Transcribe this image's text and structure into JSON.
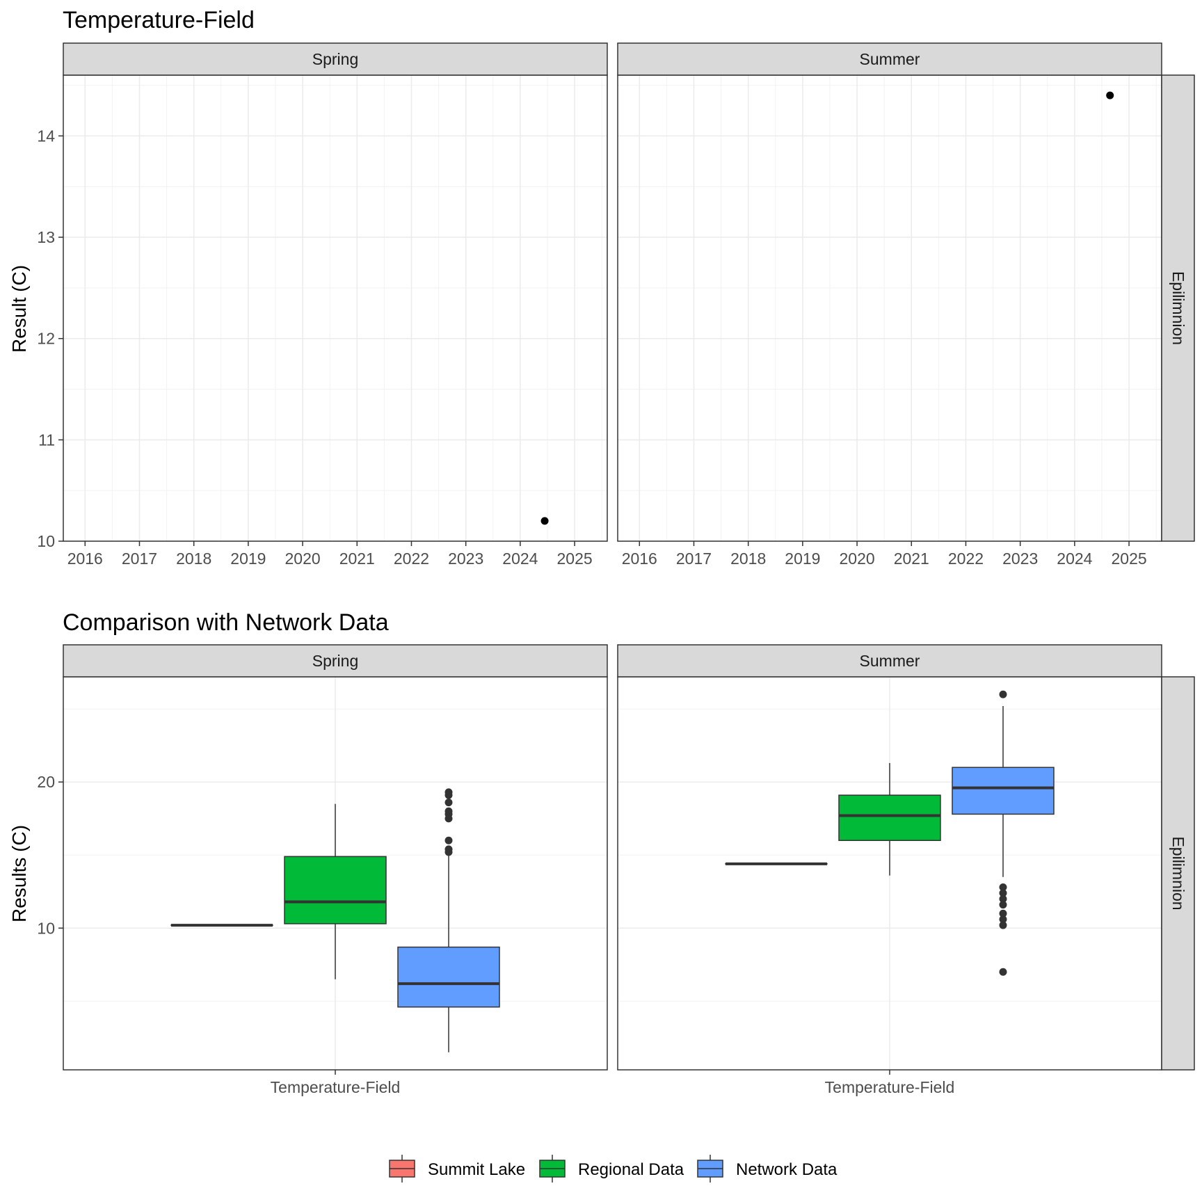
{
  "chart_data": [
    {
      "type": "scatter",
      "title": "Temperature-Field",
      "ylabel": "Result (C)",
      "xlabel": "",
      "x_ticks": [
        "2016",
        "2017",
        "2018",
        "2019",
        "2020",
        "2021",
        "2022",
        "2023",
        "2024",
        "2025"
      ],
      "xlim": [
        2015.6,
        2025.6
      ],
      "ylim": [
        10.0,
        14.6
      ],
      "y_ticks": [
        10,
        11,
        12,
        13,
        14
      ],
      "grid": true,
      "facet_rows": [
        "Epilimnion"
      ],
      "panels": [
        {
          "facet": "Spring",
          "points": [
            {
              "x": 2024.45,
              "y": 10.2
            }
          ]
        },
        {
          "facet": "Summer",
          "points": [
            {
              "x": 2024.65,
              "y": 14.4
            }
          ]
        }
      ]
    },
    {
      "type": "box",
      "title": "Comparison with Network Data",
      "ylabel": "Results (C)",
      "xlabel": "",
      "categories": [
        "Temperature-Field"
      ],
      "ylim": [
        0.3,
        27.2
      ],
      "y_ticks": [
        10,
        20
      ],
      "grid": true,
      "facet_rows": [
        "Epilimnion"
      ],
      "legend": {
        "position": "bottom",
        "entries": [
          {
            "name": "Summit Lake",
            "color": "#F8766D"
          },
          {
            "name": "Regional Data",
            "color": "#00BA38"
          },
          {
            "name": "Network Data",
            "color": "#619CFF"
          }
        ]
      },
      "panels": [
        {
          "facet": "Spring",
          "series": [
            {
              "name": "Summit Lake",
              "min": 10.2,
              "q1": 10.2,
              "median": 10.2,
              "q3": 10.2,
              "max": 10.2,
              "outliers": []
            },
            {
              "name": "Regional Data",
              "min": 6.5,
              "q1": 10.3,
              "median": 11.8,
              "q3": 14.9,
              "max": 18.5,
              "outliers": []
            },
            {
              "name": "Network Data",
              "min": 1.5,
              "q1": 4.6,
              "median": 6.2,
              "q3": 8.7,
              "max": 15.0,
              "outliers": [
                15.2,
                15.4,
                16.0,
                17.5,
                17.8,
                18.0,
                18.6,
                19.1,
                19.3
              ]
            }
          ]
        },
        {
          "facet": "Summer",
          "series": [
            {
              "name": "Summit Lake",
              "min": 14.4,
              "q1": 14.4,
              "median": 14.4,
              "q3": 14.4,
              "max": 14.4,
              "outliers": []
            },
            {
              "name": "Regional Data",
              "min": 13.6,
              "q1": 16.0,
              "median": 17.7,
              "q3": 19.1,
              "max": 21.3,
              "outliers": []
            },
            {
              "name": "Network Data",
              "min": 13.5,
              "q1": 17.8,
              "median": 19.6,
              "q3": 21.0,
              "max": 25.2,
              "outliers": [
                26.0,
                12.8,
                12.4,
                12.0,
                11.6,
                11.0,
                10.6,
                10.2,
                7.0
              ]
            }
          ]
        }
      ]
    }
  ]
}
